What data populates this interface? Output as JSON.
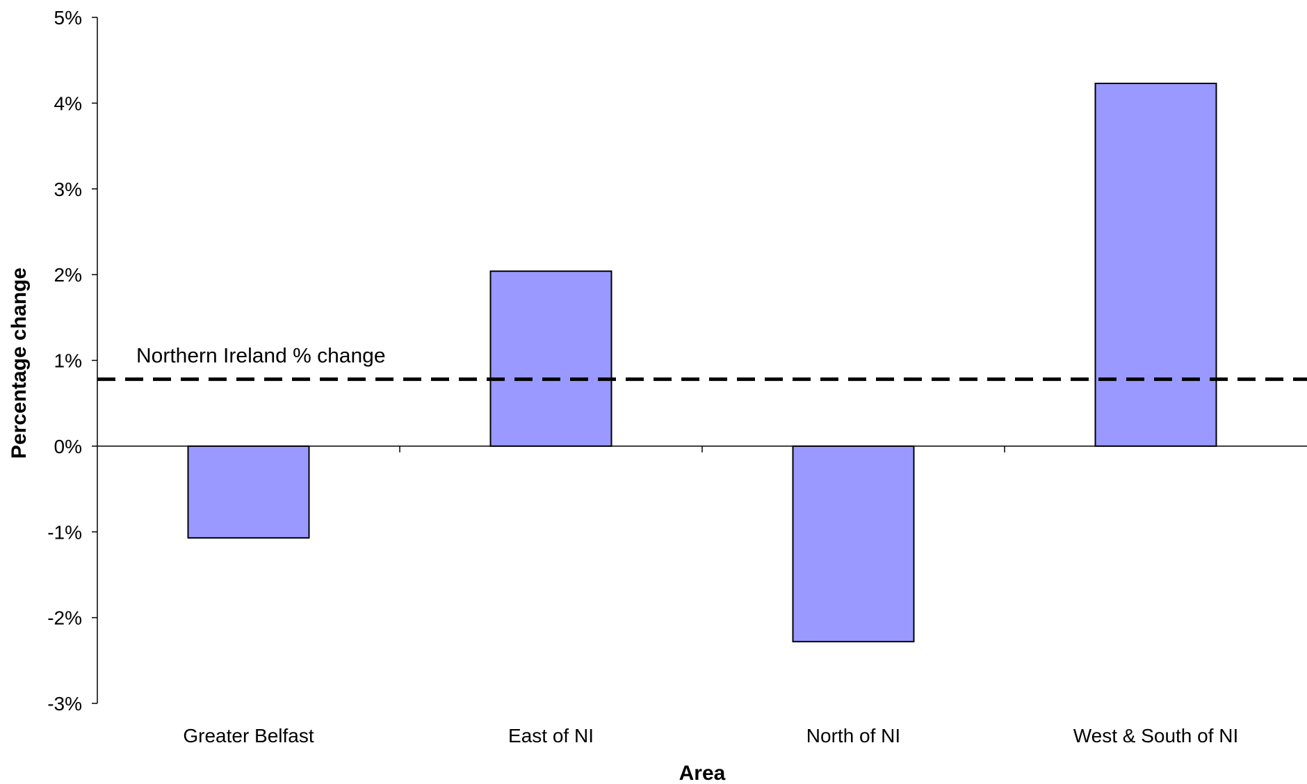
{
  "chart_data": {
    "type": "bar",
    "categories": [
      "Greater Belfast",
      "East of NI",
      "North of NI",
      "West & South of NI"
    ],
    "values": [
      -1.07,
      2.04,
      -2.28,
      4.23
    ],
    "value_unit": "%",
    "xlabel": "Area",
    "ylabel": "Percentage change",
    "ylim": [
      -3,
      5
    ],
    "yticks": [
      "5%",
      "4%",
      "3%",
      "2%",
      "1%",
      "0%",
      "-1%",
      "-2%",
      "-3%"
    ],
    "grid": false,
    "bar_color": "#9999ff",
    "bar_edge_color": "#000000",
    "reference_line": {
      "label": "Northern Ireland % change",
      "value": 0.78,
      "style": "dashed",
      "color": "#000000"
    }
  }
}
